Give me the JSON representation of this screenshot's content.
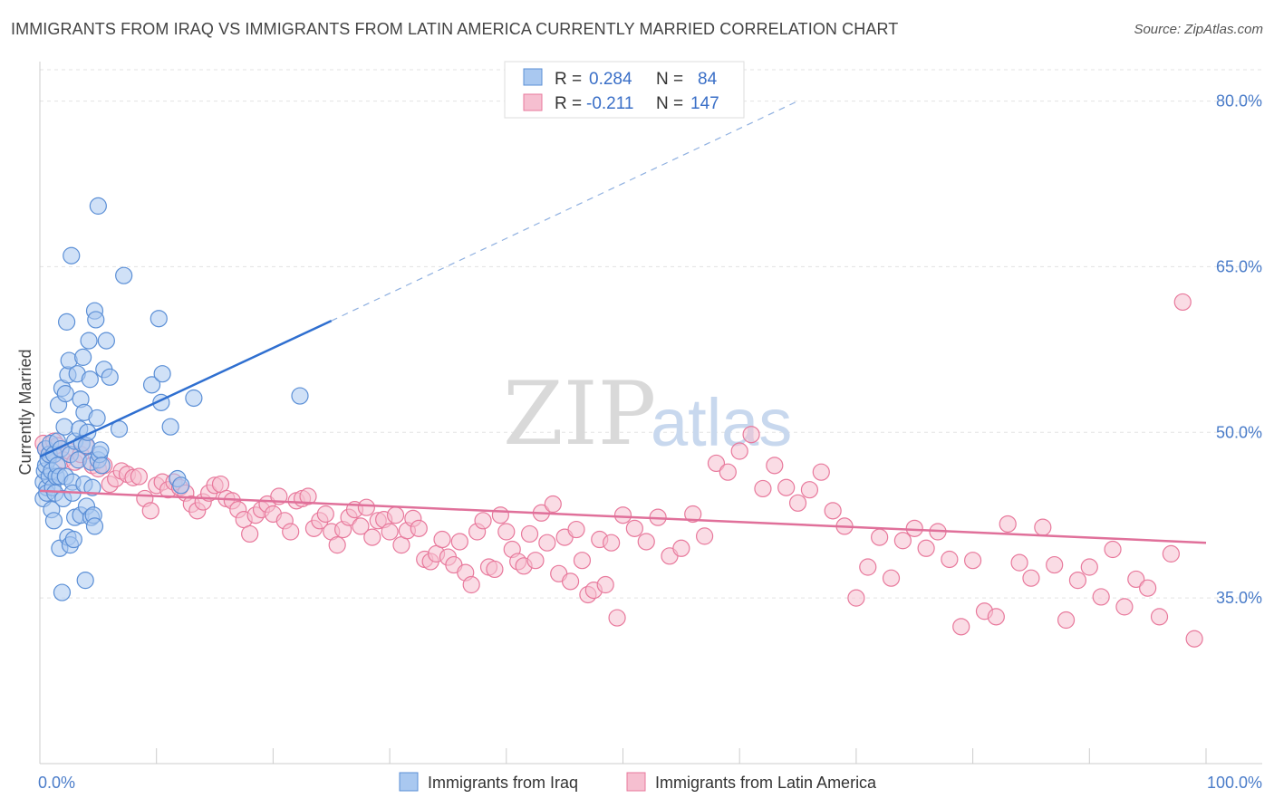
{
  "title": "IMMIGRANTS FROM IRAQ VS IMMIGRANTS FROM LATIN AMERICA CURRENTLY MARRIED CORRELATION CHART",
  "source": "Source: ZipAtlas.com",
  "watermark": {
    "zip": "ZIP",
    "atlas": "atlas"
  },
  "colors": {
    "iraq_fill": "#a9c8f0",
    "iraq_stroke": "#5b8fd6",
    "iraq_line": "#2f6fd0",
    "latam_fill": "#f6bfd0",
    "latam_stroke": "#e8799c",
    "latam_line": "#e0709a",
    "grid": "#e3e3e3",
    "axis_label": "#4a7cc9"
  },
  "legend": {
    "rows": [
      {
        "r_label": "R =",
        "r_value": "0.284",
        "n_label": "N =",
        "n_value": "84"
      },
      {
        "r_label": "R =",
        "r_value": "-0.211",
        "n_label": "N =",
        "n_value": "147"
      }
    ]
  },
  "chart_data": {
    "type": "scatter",
    "title": "IMMIGRANTS FROM IRAQ VS IMMIGRANTS FROM LATIN AMERICA CURRENTLY MARRIED CORRELATION CHART",
    "xlabel": "",
    "ylabel": "Currently Married",
    "xlim": [
      0,
      100
    ],
    "ylim": [
      20,
      83
    ],
    "x_tick_labels": [
      "0.0%",
      "100.0%"
    ],
    "y_ticks": [
      35,
      50,
      65,
      80
    ],
    "y_tick_labels": [
      "35.0%",
      "50.0%",
      "65.0%",
      "80.0%"
    ],
    "grid": true,
    "legend_placement": "top-center",
    "series": [
      {
        "name": "Immigrants from Iraq",
        "r": 0.284,
        "n": 84,
        "trend": {
          "x": [
            0,
            25
          ],
          "y": [
            47.8,
            60.1
          ],
          "dashed_to": [
            65,
            80
          ]
        },
        "points": [
          [
            0.3,
            44
          ],
          [
            0.3,
            45.5
          ],
          [
            0.4,
            46.5
          ],
          [
            0.5,
            47
          ],
          [
            0.5,
            48.5
          ],
          [
            0.6,
            45
          ],
          [
            0.6,
            44.5
          ],
          [
            0.7,
            47.5
          ],
          [
            0.8,
            46
          ],
          [
            0.8,
            48
          ],
          [
            0.9,
            49
          ],
          [
            1,
            43
          ],
          [
            1,
            46.5
          ],
          [
            1.1,
            45
          ],
          [
            1.2,
            42
          ],
          [
            1.2,
            48
          ],
          [
            1.3,
            44.5
          ],
          [
            1.4,
            46
          ],
          [
            1.5,
            47
          ],
          [
            1.5,
            49.2
          ],
          [
            1.6,
            52.5
          ],
          [
            1.7,
            39.5
          ],
          [
            1.7,
            46
          ],
          [
            1.8,
            48.5
          ],
          [
            1.9,
            54
          ],
          [
            1.9,
            35.5
          ],
          [
            2,
            44
          ],
          [
            2.1,
            50.5
          ],
          [
            2.2,
            53.5
          ],
          [
            2.2,
            46
          ],
          [
            2.3,
            60
          ],
          [
            2.4,
            40.5
          ],
          [
            2.4,
            55.2
          ],
          [
            2.5,
            56.5
          ],
          [
            2.6,
            48
          ],
          [
            2.6,
            39.8
          ],
          [
            2.7,
            66
          ],
          [
            2.8,
            45.5
          ],
          [
            2.8,
            44.5
          ],
          [
            2.9,
            40.3
          ],
          [
            3,
            42.3
          ],
          [
            3,
            49.2
          ],
          [
            3.2,
            55.3
          ],
          [
            3.3,
            47.5
          ],
          [
            3.4,
            50.3
          ],
          [
            3.5,
            42.5
          ],
          [
            3.5,
            53
          ],
          [
            3.6,
            49
          ],
          [
            3.7,
            56.8
          ],
          [
            3.8,
            51.8
          ],
          [
            3.8,
            45.3
          ],
          [
            3.9,
            36.6
          ],
          [
            4,
            48.8
          ],
          [
            4,
            43.3
          ],
          [
            4.1,
            50
          ],
          [
            4.2,
            58.3
          ],
          [
            4.3,
            54.8
          ],
          [
            4.4,
            42.3
          ],
          [
            4.4,
            47.3
          ],
          [
            4.5,
            45
          ],
          [
            4.6,
            42.5
          ],
          [
            4.7,
            41.5
          ],
          [
            4.7,
            61
          ],
          [
            4.8,
            60.2
          ],
          [
            4.9,
            51.3
          ],
          [
            5,
            70.5
          ],
          [
            5,
            47.5
          ],
          [
            5.1,
            48
          ],
          [
            5.2,
            48.4
          ],
          [
            5.3,
            47
          ],
          [
            5.5,
            55.7
          ],
          [
            5.7,
            58.3
          ],
          [
            6,
            55
          ],
          [
            6.8,
            50.3
          ],
          [
            7.2,
            64.2
          ],
          [
            9.6,
            54.3
          ],
          [
            10.2,
            60.3
          ],
          [
            10.4,
            52.7
          ],
          [
            10.5,
            55.3
          ],
          [
            11.2,
            50.5
          ],
          [
            11.8,
            45.8
          ],
          [
            12.1,
            45.2
          ],
          [
            13.2,
            53.1
          ],
          [
            22.3,
            53.3
          ]
        ]
      },
      {
        "name": "Immigrants from Latin America",
        "r": -0.211,
        "n": 147,
        "trend": {
          "x": [
            0,
            100
          ],
          "y": [
            44.7,
            40.0
          ]
        },
        "points": [
          [
            0.3,
            49
          ],
          [
            0.5,
            48.5
          ],
          [
            0.8,
            48
          ],
          [
            1.2,
            49.2
          ],
          [
            1.5,
            48.8
          ],
          [
            2,
            47.5
          ],
          [
            2.5,
            48.3
          ],
          [
            3,
            47.3
          ],
          [
            3.5,
            48
          ],
          [
            4,
            48.7
          ],
          [
            4.5,
            47
          ],
          [
            5,
            46.7
          ],
          [
            5.5,
            47
          ],
          [
            6,
            45.3
          ],
          [
            6.5,
            45.8
          ],
          [
            7,
            46.5
          ],
          [
            7.5,
            46.2
          ],
          [
            8,
            45.9
          ],
          [
            8.5,
            46
          ],
          [
            9,
            44
          ],
          [
            9.5,
            42.9
          ],
          [
            10,
            45.2
          ],
          [
            10.5,
            45.5
          ],
          [
            11,
            44.8
          ],
          [
            11.5,
            45.5
          ],
          [
            12,
            45
          ],
          [
            12.5,
            44.5
          ],
          [
            13,
            43.5
          ],
          [
            13.5,
            42.9
          ],
          [
            14,
            43.7
          ],
          [
            14.5,
            44.5
          ],
          [
            15,
            45.2
          ],
          [
            15.5,
            45.3
          ],
          [
            16,
            44
          ],
          [
            16.5,
            43.8
          ],
          [
            17,
            43
          ],
          [
            17.5,
            42.1
          ],
          [
            18,
            40.8
          ],
          [
            18.5,
            42.5
          ],
          [
            19,
            43
          ],
          [
            19.5,
            43.5
          ],
          [
            20,
            42.6
          ],
          [
            20.5,
            44.2
          ],
          [
            21,
            42
          ],
          [
            21.5,
            41
          ],
          [
            22,
            43.8
          ],
          [
            22.5,
            44
          ],
          [
            23,
            44.2
          ],
          [
            23.5,
            41.3
          ],
          [
            24,
            42
          ],
          [
            24.5,
            42.6
          ],
          [
            25,
            41
          ],
          [
            25.5,
            39.8
          ],
          [
            26,
            41.2
          ],
          [
            26.5,
            42.3
          ],
          [
            27,
            43
          ],
          [
            27.5,
            41.5
          ],
          [
            28,
            43.2
          ],
          [
            28.5,
            40.5
          ],
          [
            29,
            42
          ],
          [
            29.5,
            42.1
          ],
          [
            30,
            41
          ],
          [
            30.5,
            42.5
          ],
          [
            31,
            39.8
          ],
          [
            31.5,
            41.1
          ],
          [
            32,
            42.2
          ],
          [
            32.5,
            41.3
          ],
          [
            33,
            38.5
          ],
          [
            33.5,
            38.3
          ],
          [
            34,
            39
          ],
          [
            34.5,
            40.3
          ],
          [
            35,
            38.7
          ],
          [
            35.5,
            38
          ],
          [
            36,
            40.1
          ],
          [
            36.5,
            37.3
          ],
          [
            37,
            36.2
          ],
          [
            37.5,
            41
          ],
          [
            38,
            42
          ],
          [
            38.5,
            37.8
          ],
          [
            39,
            37.6
          ],
          [
            39.5,
            42.5
          ],
          [
            40,
            41
          ],
          [
            40.5,
            39.4
          ],
          [
            41,
            38.3
          ],
          [
            41.5,
            37.9
          ],
          [
            42,
            40.8
          ],
          [
            42.5,
            38.4
          ],
          [
            43,
            42.7
          ],
          [
            43.5,
            40
          ],
          [
            44,
            43.5
          ],
          [
            44.5,
            37.2
          ],
          [
            45,
            40.5
          ],
          [
            45.5,
            36.5
          ],
          [
            46,
            41.2
          ],
          [
            46.5,
            38.4
          ],
          [
            47,
            35.3
          ],
          [
            47.5,
            35.7
          ],
          [
            48,
            40.3
          ],
          [
            48.5,
            36.2
          ],
          [
            49,
            40
          ],
          [
            49.5,
            33.2
          ],
          [
            50,
            42.5
          ],
          [
            51,
            41.3
          ],
          [
            52,
            40.1
          ],
          [
            53,
            42.3
          ],
          [
            54,
            38.8
          ],
          [
            55,
            39.5
          ],
          [
            56,
            42.6
          ],
          [
            57,
            40.6
          ],
          [
            58,
            47.2
          ],
          [
            59,
            46.4
          ],
          [
            60,
            48.3
          ],
          [
            61,
            49.8
          ],
          [
            62,
            44.9
          ],
          [
            63,
            47
          ],
          [
            64,
            45
          ],
          [
            65,
            43.6
          ],
          [
            66,
            44.8
          ],
          [
            67,
            46.4
          ],
          [
            68,
            42.9
          ],
          [
            69,
            41.5
          ],
          [
            70,
            35
          ],
          [
            71,
            37.8
          ],
          [
            72,
            40.5
          ],
          [
            73,
            36.8
          ],
          [
            74,
            40.2
          ],
          [
            75,
            41.3
          ],
          [
            76,
            39.5
          ],
          [
            77,
            41
          ],
          [
            78,
            38.5
          ],
          [
            79,
            32.4
          ],
          [
            80,
            38.4
          ],
          [
            81,
            33.8
          ],
          [
            82,
            33.3
          ],
          [
            83,
            41.7
          ],
          [
            84,
            38.2
          ],
          [
            85,
            36.8
          ],
          [
            86,
            41.4
          ],
          [
            87,
            38
          ],
          [
            88,
            33
          ],
          [
            89,
            36.6
          ],
          [
            90,
            37.8
          ],
          [
            91,
            35.1
          ],
          [
            92,
            39.4
          ],
          [
            93,
            34.2
          ],
          [
            94,
            36.7
          ],
          [
            95,
            35.9
          ],
          [
            96,
            33.3
          ],
          [
            97,
            39
          ],
          [
            98,
            61.8
          ],
          [
            99,
            31.3
          ]
        ]
      }
    ]
  },
  "bottom_legend": [
    {
      "label": "Immigrants from Iraq"
    },
    {
      "label": "Immigrants from Latin America"
    }
  ]
}
